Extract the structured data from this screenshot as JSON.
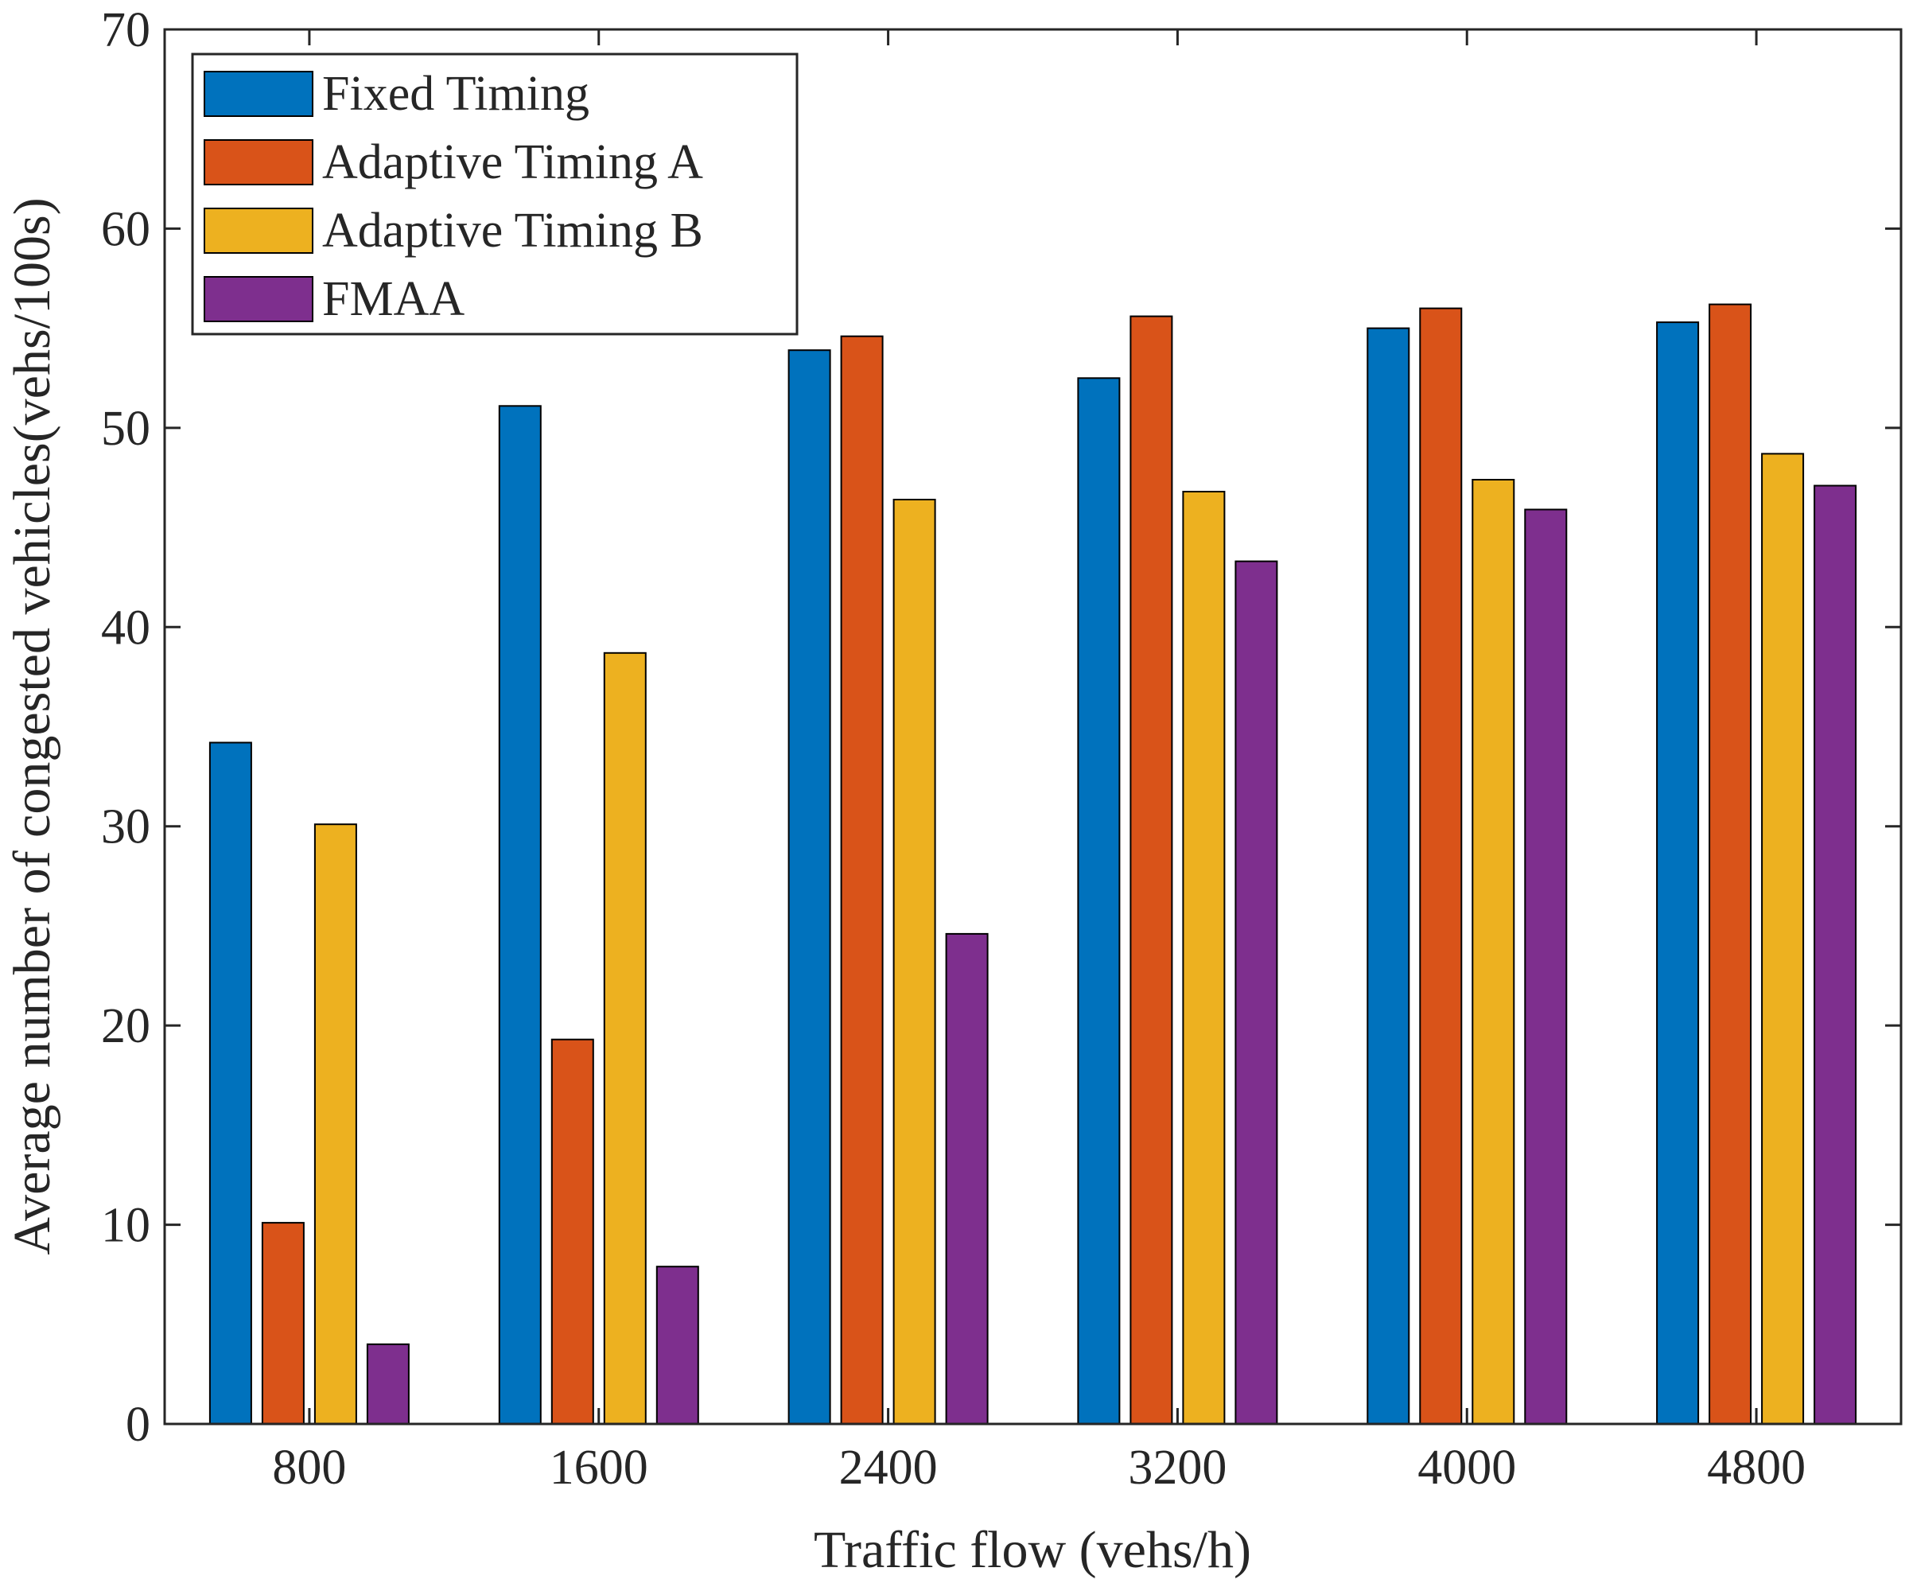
{
  "chart_data": {
    "type": "bar",
    "title": "",
    "xlabel": "Traffic flow (vehs/h)",
    "ylabel": "Average number of congested vehicles(vehs/100s)",
    "ylim": [
      0,
      70
    ],
    "yticks": [
      0,
      10,
      20,
      30,
      40,
      50,
      60,
      70
    ],
    "grid": false,
    "legend_position": "top-left",
    "categories": [
      "800",
      "1600",
      "2400",
      "3200",
      "4000",
      "4800"
    ],
    "series": [
      {
        "name": "Fixed Timing",
        "color": "#0072BD",
        "values": [
          34.2,
          51.1,
          53.9,
          52.5,
          55.0,
          55.3
        ]
      },
      {
        "name": "Adaptive Timing A",
        "color": "#D95319",
        "values": [
          10.1,
          19.3,
          54.6,
          55.6,
          56.0,
          56.2
        ]
      },
      {
        "name": "Adaptive Timing B",
        "color": "#EDB120",
        "values": [
          30.1,
          38.7,
          46.4,
          46.8,
          47.4,
          48.7
        ]
      },
      {
        "name": "FMAA",
        "color": "#7E2F8E",
        "values": [
          4.0,
          7.9,
          24.6,
          43.3,
          45.9,
          47.1
        ]
      }
    ]
  }
}
